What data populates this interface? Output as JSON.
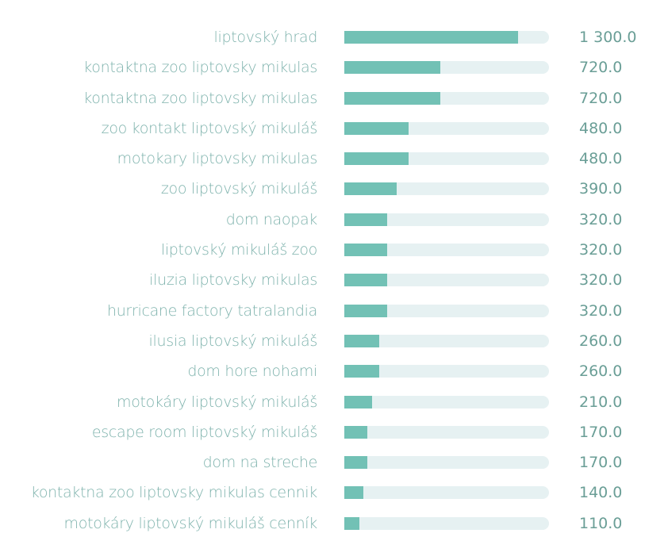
{
  "colors": {
    "bar": "#72c1b5",
    "track": "#e6f1f2",
    "label": "#7fb3ad",
    "value": "#6a9e96"
  },
  "chart_data": {
    "type": "bar",
    "orientation": "horizontal",
    "title": "",
    "xlabel": "",
    "ylabel": "",
    "max": 1530,
    "categories": [
      "liptovský hrad",
      "kontaktna zoo liptovsky mikulas",
      "kontaktna zoo liptovsky mikulas",
      "zoo kontakt liptovský mikuláš",
      "motokary liptovsky mikulas",
      "zoo liptovský mikuláš",
      "dom naopak",
      "liptovský mikuláš zoo",
      "iluzia liptovsky mikulas",
      "hurricane factory tatralandia",
      "ilusia liptovský mikuláš",
      "dom hore nohami",
      "motokáry liptovský mikuláš",
      "escape room liptovský mikuláš",
      "dom na streche",
      "kontaktna zoo liptovsky mikulas cennik",
      "motokáry liptovský mikuláš cenník"
    ],
    "values": [
      1300,
      720,
      720,
      480,
      480,
      390,
      320,
      320,
      320,
      320,
      260,
      260,
      210,
      170,
      170,
      140,
      110
    ],
    "value_labels": [
      "1 300.0",
      "720.0",
      "720.0",
      "480.0",
      "480.0",
      "390.0",
      "320.0",
      "320.0",
      "320.0",
      "320.0",
      "260.0",
      "260.0",
      "210.0",
      "170.0",
      "170.0",
      "140.0",
      "110.0"
    ]
  }
}
